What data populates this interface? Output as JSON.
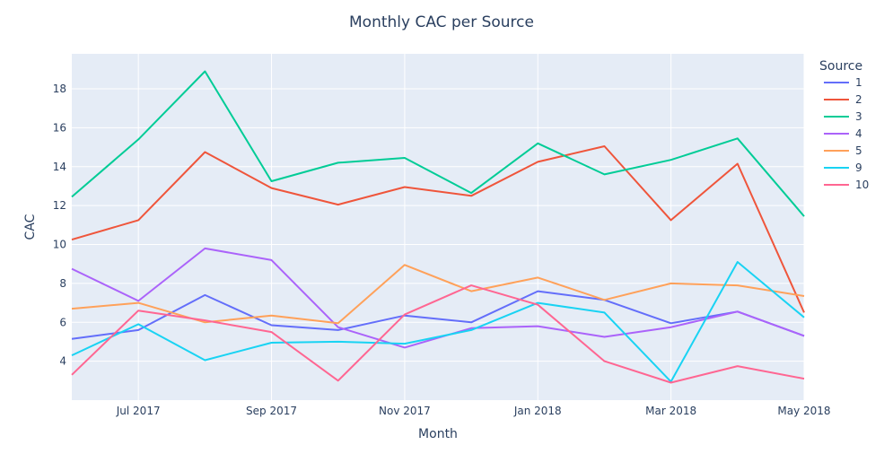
{
  "chart_data": {
    "type": "line",
    "title": "Monthly CAC per Source",
    "xlabel": "Month",
    "ylabel": "CAC",
    "x": [
      "2017-06",
      "2017-07",
      "2017-08",
      "2017-09",
      "2017-10",
      "2017-11",
      "2017-12",
      "2018-01",
      "2018-02",
      "2018-03",
      "2018-04",
      "2018-05"
    ],
    "x_tick_labels": [
      "Jul 2017",
      "Sep 2017",
      "Nov 2017",
      "Jan 2018",
      "Mar 2018",
      "May 2018"
    ],
    "x_tick_months": [
      "2017-07",
      "2017-09",
      "2017-11",
      "2018-01",
      "2018-03",
      "2018-05"
    ],
    "ylim": [
      2,
      19.8
    ],
    "y_ticks": [
      4,
      6,
      8,
      10,
      12,
      14,
      16,
      18
    ],
    "grid": true,
    "legend": {
      "title": "Source",
      "position": "right"
    },
    "series": [
      {
        "name": "1",
        "color": "#636efa",
        "values": [
          5.15,
          5.6,
          7.4,
          5.85,
          5.6,
          6.35,
          6.0,
          7.6,
          7.15,
          5.95,
          6.55,
          5.3
        ]
      },
      {
        "name": "2",
        "color": "#ef553b",
        "values": [
          10.25,
          11.25,
          14.75,
          12.9,
          12.05,
          12.95,
          12.5,
          14.25,
          15.05,
          11.25,
          14.15,
          6.5
        ]
      },
      {
        "name": "3",
        "color": "#00cc96",
        "values": [
          12.45,
          15.4,
          18.9,
          13.25,
          14.2,
          14.45,
          12.65,
          15.2,
          13.6,
          14.35,
          15.45,
          11.45
        ]
      },
      {
        "name": "4",
        "color": "#ab63fa",
        "values": [
          8.75,
          7.1,
          9.8,
          9.2,
          5.75,
          4.7,
          5.7,
          5.8,
          5.25,
          5.75,
          6.55,
          5.3
        ]
      },
      {
        "name": "5",
        "color": "#ffa15a",
        "values": [
          6.7,
          7.0,
          6.0,
          6.35,
          5.95,
          8.95,
          7.6,
          8.3,
          7.15,
          8.0,
          7.9,
          7.35
        ]
      },
      {
        "name": "9",
        "color": "#19d3f3",
        "values": [
          4.3,
          5.9,
          4.05,
          4.95,
          5.0,
          4.9,
          5.6,
          7.0,
          6.5,
          2.95,
          9.1,
          6.25
        ]
      },
      {
        "name": "10",
        "color": "#ff6692",
        "values": [
          3.3,
          6.6,
          6.1,
          5.5,
          3.0,
          6.4,
          7.9,
          6.9,
          4.0,
          2.9,
          3.75,
          3.1
        ]
      }
    ]
  }
}
